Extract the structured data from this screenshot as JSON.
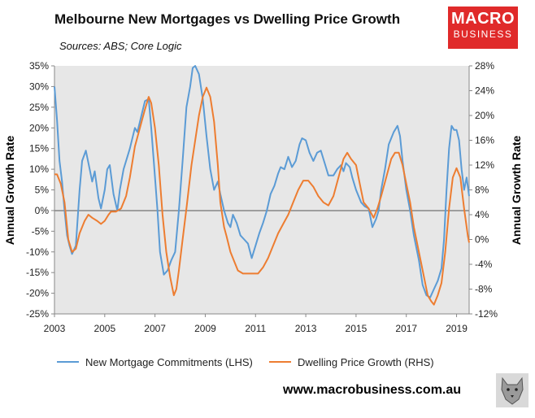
{
  "header": {
    "title": "Melbourne New Mortgages vs Dwelling Price Growth",
    "source": "Sources: ABS; Core Logic"
  },
  "logo": {
    "line1": "MACRO",
    "line2": "BUSINESS",
    "color": "#e02a2a"
  },
  "footer": {
    "url": "www.macrobusiness.com.au"
  },
  "chart_data": {
    "type": "line",
    "x_axis": {
      "min": 2003,
      "max": 2019.5,
      "ticks": [
        "2003",
        "2005",
        "2007",
        "2009",
        "2011",
        "2013",
        "2015",
        "2017",
        "2019"
      ]
    },
    "y_left": {
      "label": "Annual Growth Rate",
      "min": -25,
      "max": 35,
      "ticks": [
        "35%",
        "30%",
        "25%",
        "20%",
        "15%",
        "10%",
        "5%",
        "0%",
        "-5%",
        "-10%",
        "-15%",
        "-20%",
        "-25%"
      ]
    },
    "y_right": {
      "label": "Annual Growth Rate",
      "min": -12,
      "max": 28,
      "ticks": [
        "28%",
        "24%",
        "20%",
        "16%",
        "12%",
        "8%",
        "4%",
        "0%",
        "-4%",
        "-8%",
        "-12%"
      ]
    },
    "grid": false,
    "legend_position": "bottom",
    "series": [
      {
        "name": "New Mortgage Commitments (LHS)",
        "axis": "left",
        "color": "#5b9bd5",
        "points": [
          [
            2003.0,
            30
          ],
          [
            2003.1,
            22
          ],
          [
            2003.2,
            12
          ],
          [
            2003.3,
            7
          ],
          [
            2003.4,
            0
          ],
          [
            2003.5,
            -6
          ],
          [
            2003.6,
            -8.5
          ],
          [
            2003.7,
            -10.5
          ],
          [
            2003.85,
            -8.5
          ],
          [
            2004.0,
            5
          ],
          [
            2004.1,
            12
          ],
          [
            2004.25,
            14.5
          ],
          [
            2004.4,
            10
          ],
          [
            2004.5,
            7
          ],
          [
            2004.6,
            9.5
          ],
          [
            2004.75,
            3
          ],
          [
            2004.85,
            0.5
          ],
          [
            2005.0,
            5
          ],
          [
            2005.1,
            10
          ],
          [
            2005.2,
            11
          ],
          [
            2005.35,
            4
          ],
          [
            2005.5,
            0
          ],
          [
            2005.6,
            5
          ],
          [
            2005.75,
            10
          ],
          [
            2006.0,
            15
          ],
          [
            2006.2,
            20
          ],
          [
            2006.3,
            19
          ],
          [
            2006.5,
            24
          ],
          [
            2006.6,
            26.5
          ],
          [
            2006.75,
            27
          ],
          [
            2006.85,
            20
          ],
          [
            2006.95,
            12
          ],
          [
            2007.1,
            0
          ],
          [
            2007.2,
            -10
          ],
          [
            2007.35,
            -15.5
          ],
          [
            2007.5,
            -14.5
          ],
          [
            2007.65,
            -12
          ],
          [
            2007.8,
            -10
          ],
          [
            2007.95,
            0
          ],
          [
            2008.1,
            12
          ],
          [
            2008.25,
            25
          ],
          [
            2008.4,
            30
          ],
          [
            2008.5,
            34.5
          ],
          [
            2008.6,
            35
          ],
          [
            2008.75,
            33
          ],
          [
            2008.9,
            27
          ],
          [
            2009.05,
            18
          ],
          [
            2009.2,
            10
          ],
          [
            2009.35,
            5
          ],
          [
            2009.5,
            7
          ],
          [
            2009.6,
            4
          ],
          [
            2009.75,
            0
          ],
          [
            2009.9,
            -3
          ],
          [
            2010.0,
            -4
          ],
          [
            2010.1,
            -1
          ],
          [
            2010.25,
            -3
          ],
          [
            2010.4,
            -6
          ],
          [
            2010.55,
            -7
          ],
          [
            2010.7,
            -8
          ],
          [
            2010.85,
            -11.5
          ],
          [
            2011.0,
            -8.5
          ],
          [
            2011.15,
            -5.5
          ],
          [
            2011.3,
            -3
          ],
          [
            2011.45,
            0
          ],
          [
            2011.6,
            4
          ],
          [
            2011.75,
            6
          ],
          [
            2011.9,
            9
          ],
          [
            2012.0,
            10.5
          ],
          [
            2012.15,
            10
          ],
          [
            2012.3,
            13
          ],
          [
            2012.45,
            10.5
          ],
          [
            2012.6,
            12
          ],
          [
            2012.75,
            16
          ],
          [
            2012.85,
            17.5
          ],
          [
            2013.0,
            17
          ],
          [
            2013.15,
            14
          ],
          [
            2013.3,
            12
          ],
          [
            2013.45,
            14
          ],
          [
            2013.6,
            14.5
          ],
          [
            2013.75,
            11.5
          ],
          [
            2013.9,
            8.5
          ],
          [
            2014.1,
            8.5
          ],
          [
            2014.25,
            10
          ],
          [
            2014.4,
            11
          ],
          [
            2014.5,
            9.5
          ],
          [
            2014.6,
            11.5
          ],
          [
            2014.75,
            10.5
          ],
          [
            2014.85,
            8
          ],
          [
            2015.0,
            5
          ],
          [
            2015.2,
            2
          ],
          [
            2015.35,
            1
          ],
          [
            2015.5,
            0.5
          ],
          [
            2015.65,
            -4
          ],
          [
            2015.8,
            -2
          ],
          [
            2015.9,
            0
          ],
          [
            2016.0,
            5
          ],
          [
            2016.15,
            10
          ],
          [
            2016.3,
            16
          ],
          [
            2016.5,
            19
          ],
          [
            2016.65,
            20.5
          ],
          [
            2016.75,
            18
          ],
          [
            2016.85,
            12
          ],
          [
            2017.0,
            5
          ],
          [
            2017.15,
            0
          ],
          [
            2017.3,
            -6
          ],
          [
            2017.5,
            -12
          ],
          [
            2017.65,
            -18
          ],
          [
            2017.8,
            -20.5
          ],
          [
            2017.95,
            -21
          ],
          [
            2018.1,
            -19
          ],
          [
            2018.25,
            -17
          ],
          [
            2018.4,
            -14
          ],
          [
            2018.5,
            -7
          ],
          [
            2018.6,
            5
          ],
          [
            2018.7,
            15
          ],
          [
            2018.8,
            20.5
          ],
          [
            2018.9,
            19.5
          ],
          [
            2019.0,
            19.5
          ],
          [
            2019.1,
            17
          ],
          [
            2019.2,
            10
          ],
          [
            2019.3,
            5
          ],
          [
            2019.4,
            8
          ],
          [
            2019.5,
            3.5
          ]
        ]
      },
      {
        "name": "Dwelling Price Growth (RHS)",
        "axis": "right",
        "color": "#ed7d31",
        "points": [
          [
            2003.0,
            10.5
          ],
          [
            2003.1,
            10.5
          ],
          [
            2003.25,
            9
          ],
          [
            2003.4,
            6
          ],
          [
            2003.55,
            0
          ],
          [
            2003.7,
            -2
          ],
          [
            2003.85,
            -1.5
          ],
          [
            2004.0,
            1
          ],
          [
            2004.2,
            3
          ],
          [
            2004.35,
            4
          ],
          [
            2004.5,
            3.5
          ],
          [
            2004.7,
            3
          ],
          [
            2004.85,
            2.5
          ],
          [
            2005.0,
            3
          ],
          [
            2005.15,
            4
          ],
          [
            2005.25,
            4.5
          ],
          [
            2005.45,
            4.5
          ],
          [
            2005.65,
            5
          ],
          [
            2005.85,
            7
          ],
          [
            2006.0,
            10
          ],
          [
            2006.2,
            15
          ],
          [
            2006.4,
            18
          ],
          [
            2006.6,
            21
          ],
          [
            2006.75,
            23
          ],
          [
            2006.85,
            22
          ],
          [
            2007.0,
            18
          ],
          [
            2007.15,
            12
          ],
          [
            2007.3,
            4
          ],
          [
            2007.45,
            -2
          ],
          [
            2007.6,
            -6
          ],
          [
            2007.75,
            -9
          ],
          [
            2007.85,
            -8
          ],
          [
            2007.95,
            -5
          ],
          [
            2008.1,
            0
          ],
          [
            2008.25,
            5
          ],
          [
            2008.45,
            12
          ],
          [
            2008.6,
            16
          ],
          [
            2008.75,
            20
          ],
          [
            2008.9,
            23
          ],
          [
            2009.05,
            24.5
          ],
          [
            2009.2,
            23
          ],
          [
            2009.35,
            19
          ],
          [
            2009.5,
            12
          ],
          [
            2009.6,
            6
          ],
          [
            2009.75,
            2
          ],
          [
            2009.85,
            0.5
          ],
          [
            2010.0,
            -2
          ],
          [
            2010.15,
            -3.5
          ],
          [
            2010.3,
            -5
          ],
          [
            2010.5,
            -5.5
          ],
          [
            2010.7,
            -5.5
          ],
          [
            2010.9,
            -5.5
          ],
          [
            2011.1,
            -5.5
          ],
          [
            2011.3,
            -4.5
          ],
          [
            2011.5,
            -3
          ],
          [
            2011.7,
            -1
          ],
          [
            2011.9,
            1
          ],
          [
            2012.1,
            2.5
          ],
          [
            2012.3,
            4
          ],
          [
            2012.5,
            6
          ],
          [
            2012.7,
            8
          ],
          [
            2012.9,
            9.5
          ],
          [
            2013.1,
            9.5
          ],
          [
            2013.3,
            8.5
          ],
          [
            2013.5,
            7
          ],
          [
            2013.7,
            6
          ],
          [
            2013.9,
            5.5
          ],
          [
            2014.1,
            7
          ],
          [
            2014.3,
            10
          ],
          [
            2014.5,
            13
          ],
          [
            2014.65,
            14
          ],
          [
            2014.8,
            13
          ],
          [
            2015.0,
            12
          ],
          [
            2015.15,
            9
          ],
          [
            2015.3,
            6
          ],
          [
            2015.5,
            5
          ],
          [
            2015.7,
            3.5
          ],
          [
            2015.85,
            5
          ],
          [
            2016.0,
            7
          ],
          [
            2016.2,
            10
          ],
          [
            2016.4,
            13
          ],
          [
            2016.55,
            14
          ],
          [
            2016.7,
            14
          ],
          [
            2016.85,
            12
          ],
          [
            2017.0,
            9
          ],
          [
            2017.15,
            6
          ],
          [
            2017.3,
            2
          ],
          [
            2017.5,
            -2
          ],
          [
            2017.7,
            -6
          ],
          [
            2017.85,
            -9
          ],
          [
            2018.0,
            -10
          ],
          [
            2018.1,
            -10.5
          ],
          [
            2018.25,
            -9
          ],
          [
            2018.4,
            -7
          ],
          [
            2018.55,
            -2
          ],
          [
            2018.7,
            5
          ],
          [
            2018.85,
            10
          ],
          [
            2019.0,
            11.5
          ],
          [
            2019.15,
            10
          ],
          [
            2019.3,
            5
          ],
          [
            2019.45,
            0.5
          ],
          [
            2019.5,
            -0.5
          ]
        ]
      }
    ]
  }
}
